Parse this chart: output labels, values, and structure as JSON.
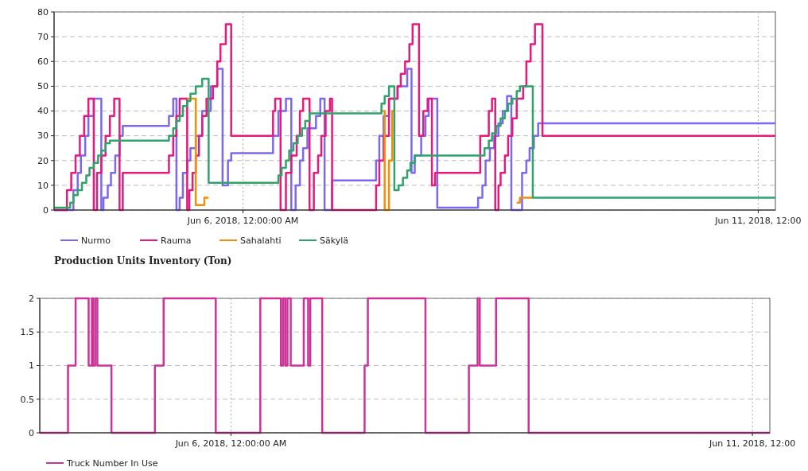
{
  "chart_data": [
    {
      "type": "step",
      "title": "Production Units Inventory (Ton)",
      "xlim": [
        "2018-06-04T04:00",
        "2018-06-11T04:00"
      ],
      "xticks": [
        {
          "value": "2018-06-06T00:00",
          "label": "Jun 6, 2018, 12:00:00 AM"
        },
        {
          "value": "2018-06-11T00:00",
          "label": "Jun 11, 2018, 12:00"
        }
      ],
      "ylim": [
        0,
        80
      ],
      "yticks": [
        0,
        10,
        20,
        30,
        40,
        50,
        60,
        70,
        80
      ],
      "grid": true,
      "legend": "bottom",
      "series": [
        {
          "name": "Nurmo",
          "color": "#7b68ee",
          "x": [
            "2018-06-04T04:00",
            "2018-06-04T08:30",
            "2018-06-04T09:30",
            "2018-06-04T10:15",
            "2018-06-04T11:15",
            "2018-06-04T12:00",
            "2018-06-04T13:15",
            "2018-06-04T15:00",
            "2018-06-04T15:30",
            "2018-06-04T16:30",
            "2018-06-04T17:15",
            "2018-06-04T18:15",
            "2018-06-04T19:15",
            "2018-06-04T20:00",
            "2018-06-05T06:45",
            "2018-06-05T07:45",
            "2018-06-05T08:30",
            "2018-06-05T09:15",
            "2018-06-05T10:00",
            "2018-06-05T11:00",
            "2018-06-05T11:45",
            "2018-06-05T13:00",
            "2018-06-05T14:30",
            "2018-06-05T16:30",
            "2018-06-05T18:00",
            "2018-06-05T19:15",
            "2018-06-05T20:30",
            "2018-06-05T21:15",
            "2018-06-06T07:00",
            "2018-06-06T08:15",
            "2018-06-06T10:00",
            "2018-06-06T11:15",
            "2018-06-06T12:15",
            "2018-06-06T13:15",
            "2018-06-06T14:00",
            "2018-06-06T15:00",
            "2018-06-06T17:00",
            "2018-06-06T18:00",
            "2018-06-06T19:00",
            "2018-06-06T20:45",
            "2018-06-07T07:00",
            "2018-06-07T07:45",
            "2018-06-07T08:45",
            "2018-06-07T10:00",
            "2018-06-07T12:00",
            "2018-06-07T14:15",
            "2018-06-07T15:15",
            "2018-06-07T16:00",
            "2018-06-07T17:30",
            "2018-06-07T18:30",
            "2018-06-07T19:15",
            "2018-06-07T21:15",
            "2018-06-08T06:45",
            "2018-06-08T07:45",
            "2018-06-08T08:30",
            "2018-06-08T09:30",
            "2018-06-08T10:30",
            "2018-06-08T11:30",
            "2018-06-08T12:30",
            "2018-06-08T13:30",
            "2018-06-08T14:30",
            "2018-06-08T17:00",
            "2018-06-08T18:00",
            "2018-06-08T18:45",
            "2018-06-08T19:45",
            "2018-06-08T20:45",
            "2018-06-11T04:00"
          ],
          "values": [
            0,
            8,
            15,
            22,
            30,
            38,
            45,
            0,
            5,
            10,
            15,
            22,
            30,
            34,
            38,
            45,
            0,
            5,
            15,
            20,
            25,
            30,
            40,
            50,
            57,
            10,
            20,
            23,
            30,
            40,
            45,
            0,
            10,
            20,
            25,
            33,
            38,
            45,
            0,
            12,
            20,
            30,
            38,
            45,
            50,
            57,
            15,
            22,
            30,
            38,
            45,
            1,
            5,
            10,
            20,
            25,
            30,
            35,
            40,
            46,
            0,
            15,
            20,
            25,
            30,
            35,
            35
          ]
        },
        {
          "name": "Rauma",
          "color": "#e6197d",
          "x": [
            "2018-06-04T04:00",
            "2018-06-04T07:00",
            "2018-06-04T08:00",
            "2018-06-04T09:00",
            "2018-06-04T10:00",
            "2018-06-04T11:00",
            "2018-06-04T12:00",
            "2018-06-04T13:15",
            "2018-06-04T14:00",
            "2018-06-04T15:00",
            "2018-06-04T16:00",
            "2018-06-04T17:00",
            "2018-06-04T18:00",
            "2018-06-04T19:15",
            "2018-06-04T20:00",
            "2018-06-05T06:45",
            "2018-06-05T07:45",
            "2018-06-05T08:30",
            "2018-06-05T09:15",
            "2018-06-05T11:00",
            "2018-06-05T11:30",
            "2018-06-05T12:15",
            "2018-06-05T13:00",
            "2018-06-05T13:45",
            "2018-06-05T14:30",
            "2018-06-05T15:30",
            "2018-06-05T17:00",
            "2018-06-05T18:00",
            "2018-06-05T18:45",
            "2018-06-05T20:00",
            "2018-06-05T21:15",
            "2018-06-06T07:00",
            "2018-06-06T07:30",
            "2018-06-06T08:45",
            "2018-06-06T10:00",
            "2018-06-06T11:15",
            "2018-06-06T12:30",
            "2018-06-06T13:15",
            "2018-06-06T14:00",
            "2018-06-06T15:30",
            "2018-06-06T16:30",
            "2018-06-06T17:30",
            "2018-06-06T18:15",
            "2018-06-06T19:15",
            "2018-06-06T20:15",
            "2018-06-06T20:45",
            "2018-06-07T07:00",
            "2018-06-07T07:45",
            "2018-06-07T08:45",
            "2018-06-07T10:00",
            "2018-06-07T12:00",
            "2018-06-07T12:45",
            "2018-06-07T13:45",
            "2018-06-07T14:45",
            "2018-06-07T15:30",
            "2018-06-07T17:00",
            "2018-06-07T18:00",
            "2018-06-07T19:00",
            "2018-06-07T20:00",
            "2018-06-07T20:45",
            "2018-06-08T07:15",
            "2018-06-08T09:15",
            "2018-06-08T10:00",
            "2018-06-08T10:45",
            "2018-06-08T11:30",
            "2018-06-08T12:00",
            "2018-06-08T13:00",
            "2018-06-08T13:45",
            "2018-06-08T14:45",
            "2018-06-08T15:45",
            "2018-06-08T17:15",
            "2018-06-08T18:00",
            "2018-06-08T19:00",
            "2018-06-08T20:00",
            "2018-06-08T21:45",
            "2018-06-11T04:00"
          ],
          "values": [
            0,
            8,
            15,
            22,
            30,
            38,
            45,
            0,
            15,
            22,
            30,
            38,
            45,
            0,
            15,
            22,
            30,
            38,
            45,
            0,
            8,
            15,
            22,
            30,
            38,
            45,
            50,
            60,
            67,
            75,
            30,
            40,
            45,
            0,
            15,
            22,
            30,
            40,
            45,
            0,
            15,
            22,
            30,
            40,
            45,
            0,
            10,
            20,
            30,
            45,
            50,
            55,
            60,
            67,
            75,
            30,
            40,
            45,
            10,
            15,
            30,
            40,
            45,
            0,
            10,
            15,
            22,
            30,
            37,
            45,
            50,
            60,
            67,
            75,
            30,
            30
          ]
        },
        {
          "name": "Sahalahti",
          "color": "#f0900a",
          "x": [
            "2018-06-05T11:00",
            "2018-06-05T13:00",
            "2018-06-05T15:00",
            "2018-06-05T16:00"
          ],
          "values": [
            45,
            2,
            5,
            5
          ]
        },
        {
          "color": "#f0900a",
          "x": [
            "2018-06-07T08:15",
            "2018-06-07T09:00",
            "2018-06-07T10:00",
            "2018-06-07T10:45",
            "2018-06-07T11:15"
          ],
          "values": [
            40,
            0,
            20,
            40,
            40
          ]
        },
        {
          "color": "#f0900a",
          "x": [
            "2018-06-08T15:45",
            "2018-06-08T16:30",
            "2018-06-08T19:30"
          ],
          "values": [
            3,
            5,
            5
          ]
        },
        {
          "name": "Säkylä",
          "color": "#2ea36b",
          "x": [
            "2018-06-04T04:00",
            "2018-06-04T07:45",
            "2018-06-04T08:30",
            "2018-06-04T09:30",
            "2018-06-04T10:30",
            "2018-06-04T11:30",
            "2018-06-04T12:15",
            "2018-06-04T13:15",
            "2018-06-04T14:15",
            "2018-06-04T15:00",
            "2018-06-04T16:00",
            "2018-06-04T17:00",
            "2018-06-05T06:45",
            "2018-06-05T07:45",
            "2018-06-05T08:30",
            "2018-06-05T09:15",
            "2018-06-05T10:00",
            "2018-06-05T11:00",
            "2018-06-05T11:45",
            "2018-06-05T13:00",
            "2018-06-05T14:30",
            "2018-06-05T16:00",
            "2018-06-06T08:15",
            "2018-06-06T09:00",
            "2018-06-06T10:00",
            "2018-06-06T10:45",
            "2018-06-06T11:45",
            "2018-06-06T12:45",
            "2018-06-06T13:45",
            "2018-06-06T14:30",
            "2018-06-06T15:30",
            "2018-06-07T08:15",
            "2018-06-07T09:00",
            "2018-06-07T10:00",
            "2018-06-07T11:15",
            "2018-06-07T12:15",
            "2018-06-07T13:15",
            "2018-06-07T14:15",
            "2018-06-07T15:00",
            "2018-06-07T16:00",
            "2018-06-08T08:15",
            "2018-06-08T09:15",
            "2018-06-08T10:00",
            "2018-06-08T11:00",
            "2018-06-08T12:00",
            "2018-06-08T13:00",
            "2018-06-08T13:45",
            "2018-06-08T14:45",
            "2018-06-08T15:45",
            "2018-06-08T16:30",
            "2018-06-08T19:30",
            "2018-06-11T04:00"
          ],
          "values": [
            1,
            3,
            6,
            8,
            11,
            14,
            17,
            19,
            22,
            24,
            27,
            28,
            30,
            33,
            36,
            38,
            42,
            44,
            47,
            50,
            53,
            11,
            14,
            17,
            20,
            24,
            27,
            30,
            33,
            36,
            39,
            43,
            46,
            50,
            8,
            10,
            13,
            16,
            19,
            22,
            25,
            28,
            31,
            34,
            37,
            40,
            43,
            45,
            48,
            50,
            5,
            5
          ]
        }
      ]
    },
    {
      "type": "step",
      "xlim": [
        "2018-06-04T04:00",
        "2018-06-11T04:00"
      ],
      "xticks": [
        {
          "value": "2018-06-06T00:00",
          "label": "Jun 6, 2018, 12:00:00 AM"
        },
        {
          "value": "2018-06-11T00:00",
          "label": "Jun 11, 2018, 12:00"
        }
      ],
      "ylim": [
        0,
        2
      ],
      "yticks": [
        0,
        0.5,
        1,
        1.5,
        2
      ],
      "grid": true,
      "legend": "bottom",
      "series": [
        {
          "name": "Truck Number In Use",
          "color": "#cc3399",
          "x": [
            "2018-06-04T04:00",
            "2018-06-04T10:30",
            "2018-06-04T12:15",
            "2018-06-04T15:15",
            "2018-06-04T16:00",
            "2018-06-04T16:15",
            "2018-06-04T16:45",
            "2018-06-04T17:15",
            "2018-06-04T20:30",
            "2018-06-05T06:30",
            "2018-06-05T08:30",
            "2018-06-05T20:30",
            "2018-06-06T06:45",
            "2018-06-06T11:30",
            "2018-06-06T12:00",
            "2018-06-06T12:30",
            "2018-06-06T13:00",
            "2018-06-06T13:45",
            "2018-06-06T16:45",
            "2018-06-06T17:45",
            "2018-06-06T18:15",
            "2018-06-06T21:00",
            "2018-06-07T06:45",
            "2018-06-07T07:30",
            "2018-06-07T20:45",
            "2018-06-08T06:45",
            "2018-06-08T08:45",
            "2018-06-08T09:15",
            "2018-06-08T13:00",
            "2018-06-08T20:30",
            "2018-06-11T04:00"
          ],
          "values": [
            0,
            1,
            2,
            1,
            2,
            1,
            2,
            1,
            0,
            1,
            2,
            0,
            2,
            1,
            2,
            1,
            2,
            1,
            2,
            1,
            2,
            0,
            1,
            2,
            0,
            1,
            2,
            1,
            2,
            0,
            0
          ]
        }
      ]
    }
  ]
}
